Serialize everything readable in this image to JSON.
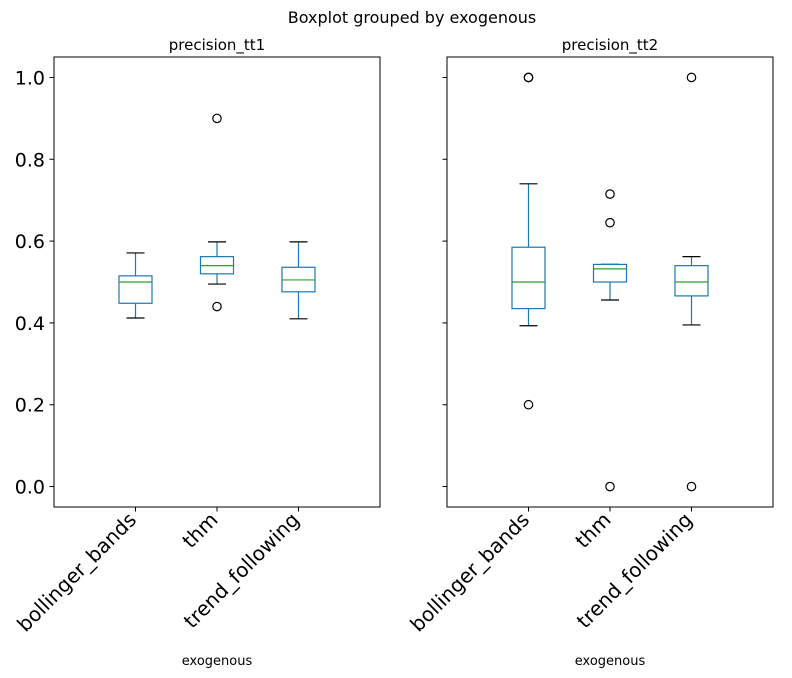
{
  "suptitle": "Boxplot grouped by exogenous",
  "chart_data": [
    {
      "type": "box",
      "title": "precision_tt1",
      "xlabel": "exogenous",
      "ylabel": "",
      "ylim": [
        -0.05,
        1.05
      ],
      "yticks": [
        0.0,
        0.2,
        0.4,
        0.6,
        0.8,
        1.0
      ],
      "ytick_labels": [
        "0.0",
        "0.2",
        "0.4",
        "0.6",
        "0.8",
        "1.0"
      ],
      "show_ytick_labels": true,
      "grid": false,
      "categories": [
        "bollinger_bands",
        "thm",
        "trend_following"
      ],
      "boxes": [
        {
          "whislo": 0.412,
          "q1": 0.448,
          "med": 0.5,
          "q3": 0.515,
          "whishi": 0.571,
          "fliers": []
        },
        {
          "whislo": 0.495,
          "q1": 0.52,
          "med": 0.54,
          "q3": 0.562,
          "whishi": 0.598,
          "fliers": [
            0.44,
            0.9
          ]
        },
        {
          "whislo": 0.41,
          "q1": 0.476,
          "med": 0.505,
          "q3": 0.536,
          "whishi": 0.598,
          "fliers": []
        }
      ]
    },
    {
      "type": "box",
      "title": "precision_tt2",
      "xlabel": "exogenous",
      "ylabel": "",
      "ylim": [
        -0.05,
        1.05
      ],
      "yticks": [
        0.0,
        0.2,
        0.4,
        0.6,
        0.8,
        1.0
      ],
      "ytick_labels": [
        "0.0",
        "0.2",
        "0.4",
        "0.6",
        "0.8",
        "1.0"
      ],
      "show_ytick_labels": false,
      "grid": false,
      "categories": [
        "bollinger_bands",
        "thm",
        "trend_following"
      ],
      "boxes": [
        {
          "whislo": 0.393,
          "q1": 0.435,
          "med": 0.5,
          "q3": 0.585,
          "whishi": 0.74,
          "fliers": [
            0.2,
            1.0,
            1.0
          ]
        },
        {
          "whislo": 0.456,
          "q1": 0.5,
          "med": 0.532,
          "q3": 0.543,
          "whishi": 0.543,
          "fliers": [
            0.0,
            0.645,
            0.715
          ]
        },
        {
          "whislo": 0.395,
          "q1": 0.466,
          "med": 0.5,
          "q3": 0.54,
          "whishi": 0.562,
          "fliers": [
            0.0,
            1.0
          ]
        }
      ]
    }
  ],
  "colors": {
    "box": "#1f77b4",
    "median": "#2ca02c",
    "cap": "#000000",
    "flier": "#000000"
  }
}
